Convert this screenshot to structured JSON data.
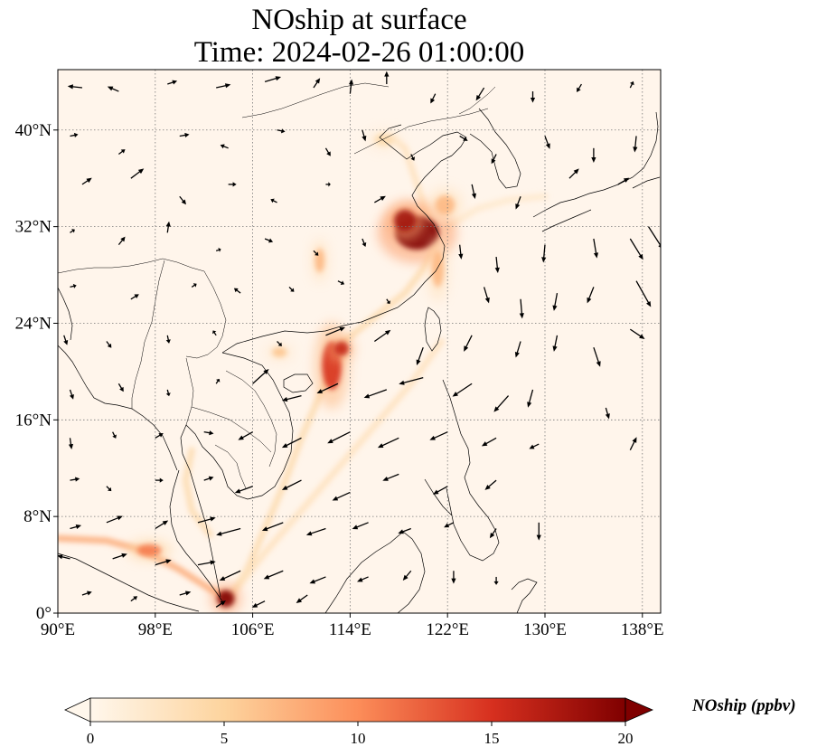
{
  "title": {
    "line1": "NOship at surface",
    "line2": "Time: 2024-02-26 01:00:00"
  },
  "map": {
    "lon_range": [
      90,
      139.5
    ],
    "lat_range": [
      0,
      45
    ],
    "xticks": [
      {
        "value": 90,
        "label": "90°E"
      },
      {
        "value": 98,
        "label": "98°E"
      },
      {
        "value": 106,
        "label": "106°E"
      },
      {
        "value": 114,
        "label": "114°E"
      },
      {
        "value": 122,
        "label": "122°E"
      },
      {
        "value": 130,
        "label": "130°E"
      },
      {
        "value": 138,
        "label": "138°E"
      }
    ],
    "yticks": [
      {
        "value": 0,
        "label": "0°"
      },
      {
        "value": 8,
        "label": "8°N"
      },
      {
        "value": 16,
        "label": "16°N"
      },
      {
        "value": 24,
        "label": "24°N"
      },
      {
        "value": 32,
        "label": "32°N"
      },
      {
        "value": 40,
        "label": "40°N"
      }
    ],
    "gridlines": true,
    "background_color": "#fff5eb",
    "plumes": [
      {
        "lon": 119.5,
        "lat": 31.5,
        "rx": 1.8,
        "ry": 1.4,
        "intensity": 20
      },
      {
        "lon": 118.5,
        "lat": 32.5,
        "rx": 0.9,
        "ry": 0.9,
        "intensity": 18
      },
      {
        "lon": 112.5,
        "lat": 20.5,
        "rx": 0.8,
        "ry": 2.0,
        "intensity": 15
      },
      {
        "lon": 113.3,
        "lat": 21.9,
        "rx": 0.6,
        "ry": 0.6,
        "intensity": 16
      },
      {
        "lon": 103.8,
        "lat": 1.2,
        "rx": 0.7,
        "ry": 0.7,
        "intensity": 20
      },
      {
        "lon": 97.5,
        "lat": 5.2,
        "rx": 1.0,
        "ry": 0.5,
        "intensity": 11
      },
      {
        "lon": 111.5,
        "lat": 29.2,
        "rx": 0.4,
        "ry": 1.0,
        "intensity": 7
      },
      {
        "lon": 121.2,
        "lat": 28.5,
        "rx": 0.5,
        "ry": 1.5,
        "intensity": 7
      },
      {
        "lon": 121.8,
        "lat": 33.8,
        "rx": 0.8,
        "ry": 0.8,
        "intensity": 7
      },
      {
        "lon": 108.2,
        "lat": 21.6,
        "rx": 0.6,
        "ry": 0.4,
        "intensity": 6
      },
      {
        "lon": 116.8,
        "lat": 39.2,
        "rx": 0.8,
        "ry": 0.5,
        "intensity": 4
      }
    ],
    "shipping_lanes": [
      {
        "points": [
          [
            90,
            6.2
          ],
          [
            94,
            6.0
          ],
          [
            97,
            5.2
          ],
          [
            100,
            3.6
          ],
          [
            102.5,
            2.0
          ],
          [
            104,
            1.2
          ]
        ],
        "intensity": 8
      },
      {
        "points": [
          [
            104,
            1.2
          ],
          [
            105.5,
            3.5
          ],
          [
            107,
            7.0
          ],
          [
            108.5,
            10.5
          ],
          [
            110,
            14.5
          ],
          [
            111.5,
            18.0
          ],
          [
            113,
            21.0
          ]
        ],
        "intensity": 4
      },
      {
        "points": [
          [
            104.5,
            1.8
          ],
          [
            107,
            5.0
          ],
          [
            110,
            8.5
          ],
          [
            113,
            12.0
          ],
          [
            116,
            15.5
          ],
          [
            119,
            19.0
          ],
          [
            121.5,
            22.5
          ]
        ],
        "intensity": 3
      },
      {
        "points": [
          [
            113.5,
            22.5
          ],
          [
            116,
            24.5
          ],
          [
            118.5,
            26.5
          ],
          [
            120,
            28.5
          ],
          [
            121,
            30.5
          ]
        ],
        "intensity": 4
      },
      {
        "points": [
          [
            122,
            32.0
          ],
          [
            124.5,
            33.5
          ],
          [
            127,
            34.2
          ],
          [
            130,
            34.5
          ]
        ],
        "intensity": 2
      },
      {
        "points": [
          [
            121,
            31.0
          ],
          [
            119.5,
            35.5
          ],
          [
            118.5,
            38.5
          ],
          [
            117.5,
            39.3
          ]
        ],
        "intensity": 3
      },
      {
        "points": [
          [
            101,
            13.5
          ],
          [
            100.5,
            11.0
          ],
          [
            101,
            8.5
          ],
          [
            102.5,
            6.5
          ]
        ],
        "intensity": 4
      }
    ],
    "wind_vectors": [
      [
        92,
        43.5,
        -0.9,
        0.1
      ],
      [
        95,
        43.2,
        -0.7,
        0.3
      ],
      [
        99,
        43.8,
        0.6,
        0.2
      ],
      [
        103,
        43.5,
        0.9,
        0.2
      ],
      [
        107,
        44,
        1.0,
        0.3
      ],
      [
        111,
        43.5,
        0.4,
        0.6
      ],
      [
        114,
        43,
        0.1,
        0.9
      ],
      [
        117,
        43.8,
        0,
        0.8
      ],
      [
        121,
        43,
        -0.3,
        -0.6
      ],
      [
        125,
        43.5,
        -0.5,
        -0.8
      ],
      [
        129,
        43.2,
        0,
        -0.7
      ],
      [
        133,
        43.8,
        -0.3,
        -0.5
      ],
      [
        137,
        43.5,
        0.2,
        0.4
      ],
      [
        91,
        39.5,
        0.5,
        0.1
      ],
      [
        95,
        38,
        0.4,
        0.3
      ],
      [
        100,
        39.5,
        0.6,
        0.1
      ],
      [
        104,
        38.5,
        -0.5,
        0.2
      ],
      [
        108,
        40,
        0.5,
        -0.1
      ],
      [
        112,
        38.5,
        0.3,
        -0.5
      ],
      [
        115,
        40,
        0.2,
        -0.7
      ],
      [
        119,
        38,
        0.2,
        -0.4
      ],
      [
        123,
        39.5,
        0.5,
        -0.3
      ],
      [
        126,
        38,
        -0.3,
        -0.6
      ],
      [
        130,
        39.5,
        0.3,
        -0.8
      ],
      [
        134,
        38.5,
        0,
        -0.9
      ],
      [
        137.5,
        39.5,
        -0.1,
        -1.0
      ],
      [
        92,
        35.5,
        0.6,
        0.4
      ],
      [
        96,
        36,
        0.8,
        0.6
      ],
      [
        100,
        34.5,
        0.4,
        -0.5
      ],
      [
        104,
        35.5,
        0.5,
        0
      ],
      [
        108,
        34,
        -0.4,
        0.2
      ],
      [
        112,
        35.5,
        0.3,
        0
      ],
      [
        116,
        34,
        0.7,
        0.4
      ],
      [
        124,
        35.5,
        0.2,
        -0.9
      ],
      [
        128,
        34.5,
        -0.3,
        -0.8
      ],
      [
        132,
        36,
        0.6,
        0.6
      ],
      [
        136,
        35.5,
        0.7,
        0.4
      ],
      [
        91,
        31.5,
        0.3,
        0.2
      ],
      [
        95,
        30.5,
        0.4,
        0.5
      ],
      [
        99,
        31.5,
        0.1,
        0.7
      ],
      [
        103,
        30,
        0.3,
        0.1
      ],
      [
        107,
        31,
        0.5,
        -0.2
      ],
      [
        111,
        30,
        0.3,
        -0.3
      ],
      [
        115,
        31,
        0.2,
        -0.5
      ],
      [
        123,
        30.5,
        0.1,
        -0.9
      ],
      [
        126,
        29.5,
        0.1,
        -1.0
      ],
      [
        130,
        30.5,
        -0.1,
        -1.1
      ],
      [
        134,
        31,
        0.2,
        -1.2
      ],
      [
        137,
        31,
        0.8,
        -1.3
      ],
      [
        138.5,
        32,
        0.9,
        -1.4
      ],
      [
        91,
        27,
        0.4,
        0.1
      ],
      [
        96,
        26,
        0.5,
        0.3
      ],
      [
        101,
        27,
        0.3,
        0.2
      ],
      [
        105,
        26.5,
        -0.4,
        0.3
      ],
      [
        109,
        27,
        0.3,
        -0.3
      ],
      [
        113,
        27.5,
        0.4,
        -0.2
      ],
      [
        117,
        26,
        0.2,
        -0.3
      ],
      [
        125,
        27,
        0.3,
        -1.0
      ],
      [
        128,
        26,
        0.1,
        -1.2
      ],
      [
        131,
        26.5,
        -0.2,
        -1.1
      ],
      [
        134,
        27,
        -0.4,
        -1.0
      ],
      [
        137.5,
        27.5,
        0.9,
        -1.6
      ],
      [
        90.5,
        23,
        0.2,
        -0.6
      ],
      [
        94,
        22.5,
        0.3,
        -0.4
      ],
      [
        99,
        23,
        0.1,
        -0.5
      ],
      [
        103,
        23,
        -0.2,
        0.3
      ],
      [
        108,
        22.5,
        0.3,
        -0.3
      ],
      [
        112,
        23,
        1.2,
        0.5
      ],
      [
        116,
        22.5,
        1.0,
        0.7
      ],
      [
        120,
        22,
        -0.4,
        -1.1
      ],
      [
        124,
        23,
        -0.5,
        -1.0
      ],
      [
        128,
        22.5,
        -0.3,
        -1.0
      ],
      [
        131,
        23,
        -0.2,
        -1.0
      ],
      [
        134,
        22,
        0.4,
        -1.2
      ],
      [
        137,
        23.5,
        0.9,
        -0.6
      ],
      [
        91,
        18.5,
        0.2,
        -0.6
      ],
      [
        95,
        19,
        0.3,
        -0.5
      ],
      [
        99,
        18.5,
        0.1,
        -0.4
      ],
      [
        103,
        19,
        0.2,
        0.3
      ],
      [
        106,
        19,
        1.0,
        0.9
      ],
      [
        110,
        18,
        -1.2,
        -0.3
      ],
      [
        113,
        19,
        -1.3,
        -0.6
      ],
      [
        117,
        18.5,
        -1.4,
        -0.5
      ],
      [
        120,
        19.5,
        -1.5,
        -0.4
      ],
      [
        124,
        19,
        -1.2,
        -0.8
      ],
      [
        127,
        18,
        -0.9,
        -1.0
      ],
      [
        129,
        18.5,
        -0.3,
        -1.1
      ],
      [
        135,
        17,
        0.2,
        -0.7
      ],
      [
        91,
        14.5,
        0.1,
        -0.7
      ],
      [
        94.5,
        15,
        0.2,
        -0.4
      ],
      [
        98,
        14.5,
        0.5,
        0.3
      ],
      [
        102,
        15,
        0.6,
        -0.1
      ],
      [
        106,
        15,
        -0.9,
        -0.5
      ],
      [
        110,
        14.5,
        -1.2,
        -0.6
      ],
      [
        114,
        15,
        -1.4,
        -0.7
      ],
      [
        118,
        14.5,
        -1.3,
        -0.6
      ],
      [
        122,
        15,
        -1.1,
        -0.5
      ],
      [
        126,
        14.5,
        -0.9,
        -0.5
      ],
      [
        129.5,
        14,
        -0.6,
        -0.3
      ],
      [
        137,
        13.5,
        0.4,
        0.8
      ],
      [
        91,
        11,
        0.6,
        0.1
      ],
      [
        94,
        10.5,
        0.3,
        -0.3
      ],
      [
        98,
        11,
        0.5,
        0
      ],
      [
        102,
        11,
        0.6,
        0.2
      ],
      [
        106,
        10.5,
        -1.1,
        -0.4
      ],
      [
        110,
        11,
        -1.2,
        -0.6
      ],
      [
        114,
        10,
        -1.1,
        -0.5
      ],
      [
        118,
        11.5,
        -1.0,
        -0.4
      ],
      [
        122,
        10.5,
        -0.9,
        -0.5
      ],
      [
        126,
        11,
        -0.7,
        -0.6
      ],
      [
        91,
        7,
        0.7,
        0.2
      ],
      [
        94,
        7.5,
        1.0,
        0.4
      ],
      [
        98,
        7,
        0.8,
        0.5
      ],
      [
        101.5,
        7.5,
        1.1,
        0.3
      ],
      [
        105,
        7,
        -1.5,
        -0.4
      ],
      [
        108.5,
        7.5,
        -1.3,
        -0.5
      ],
      [
        112,
        7,
        -1.2,
        -0.4
      ],
      [
        115.5,
        7.5,
        -1.0,
        -0.4
      ],
      [
        119,
        7,
        -0.8,
        -0.3
      ],
      [
        122.5,
        7.5,
        -0.6,
        -0.3
      ],
      [
        126,
        7,
        -0.4,
        -0.6
      ],
      [
        129.5,
        7.5,
        0,
        -1.1
      ],
      [
        91,
        4.5,
        -0.8,
        0.2
      ],
      [
        94.5,
        4.5,
        0.9,
        0.3
      ],
      [
        98,
        4,
        1.0,
        0.3
      ],
      [
        101.5,
        4,
        1.1,
        0.2
      ],
      [
        105,
        3.5,
        -1.3,
        -0.6
      ],
      [
        108.5,
        3.5,
        -1.2,
        -0.5
      ],
      [
        112,
        3,
        -1.0,
        -0.4
      ],
      [
        115.5,
        3,
        -0.7,
        -0.3
      ],
      [
        119,
        3.5,
        -0.5,
        -0.6
      ],
      [
        122.5,
        3.5,
        0,
        -0.8
      ],
      [
        126,
        3,
        0,
        -0.5
      ],
      [
        92,
        1.5,
        0.6,
        0.2
      ],
      [
        96,
        1,
        0.4,
        0.3
      ],
      [
        100,
        1.5,
        0.7,
        0.2
      ],
      [
        103,
        0.5,
        0.6,
        0.4
      ],
      [
        107,
        1,
        -0.8,
        -0.4
      ],
      [
        110.5,
        1.5,
        -0.7,
        -0.5
      ]
    ]
  },
  "colorbar": {
    "label": "NOship (ppbv)",
    "cmap": "OrRd",
    "min": 0,
    "max": 20,
    "ticks": [
      {
        "value": 0,
        "label": "0"
      },
      {
        "value": 5,
        "label": "5"
      },
      {
        "value": 10,
        "label": "10"
      },
      {
        "value": 15,
        "label": "15"
      },
      {
        "value": 20,
        "label": "20"
      }
    ],
    "extend": "both"
  }
}
